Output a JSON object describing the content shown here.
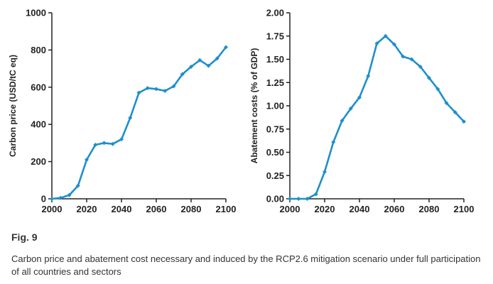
{
  "figure": {
    "label": "Fig. 9",
    "caption": "Carbon price and abatement cost necessary and induced by the RCP2.6 mitigation scenario under full participation of all countries and sectors"
  },
  "colors": {
    "line": "#1f8fcc",
    "axis": "#222222"
  },
  "chart_data": [
    {
      "type": "line",
      "title": "",
      "xlabel": "",
      "ylabel": "Carbon price (USD/tC eq)",
      "xlim": [
        2000,
        2100
      ],
      "ylim": [
        0,
        1000
      ],
      "xticks": [
        2000,
        2020,
        2040,
        2060,
        2080,
        2100
      ],
      "yticks": [
        0,
        200,
        400,
        600,
        800,
        1000
      ],
      "ytick_labels": [
        "0",
        "200",
        "400",
        "600",
        "800",
        "1000"
      ],
      "grid": false,
      "series": [
        {
          "x": [
            2000,
            2005,
            2010,
            2015,
            2020,
            2025,
            2030,
            2035,
            2040,
            2045,
            2050,
            2055,
            2060,
            2065,
            2070,
            2075,
            2080,
            2085,
            2090,
            2095,
            2100
          ],
          "y": [
            0,
            5,
            20,
            70,
            210,
            290,
            300,
            295,
            320,
            435,
            570,
            595,
            590,
            580,
            605,
            670,
            710,
            745,
            715,
            755,
            815
          ]
        }
      ]
    },
    {
      "type": "line",
      "title": "",
      "xlabel": "",
      "ylabel": "Abatement costs (% of GDP)",
      "xlim": [
        2000,
        2100
      ],
      "ylim": [
        0,
        2
      ],
      "xticks": [
        2000,
        2020,
        2040,
        2060,
        2080,
        2100
      ],
      "yticks": [
        0,
        0.25,
        0.5,
        0.75,
        1.0,
        1.25,
        1.5,
        1.75,
        2.0
      ],
      "ytick_labels": [
        "0.00",
        "0.25",
        "0.50",
        "0.75",
        "1.00",
        "1.25",
        "1.50",
        "1.75",
        "2.00"
      ],
      "grid": false,
      "series": [
        {
          "x": [
            2000,
            2005,
            2010,
            2015,
            2020,
            2025,
            2030,
            2035,
            2040,
            2045,
            2050,
            2055,
            2060,
            2065,
            2070,
            2075,
            2080,
            2085,
            2090,
            2095,
            2100
          ],
          "y": [
            0,
            0,
            0,
            0.05,
            0.29,
            0.61,
            0.84,
            0.97,
            1.09,
            1.32,
            1.67,
            1.75,
            1.66,
            1.53,
            1.5,
            1.42,
            1.3,
            1.18,
            1.03,
            0.93,
            0.83
          ]
        }
      ]
    }
  ]
}
